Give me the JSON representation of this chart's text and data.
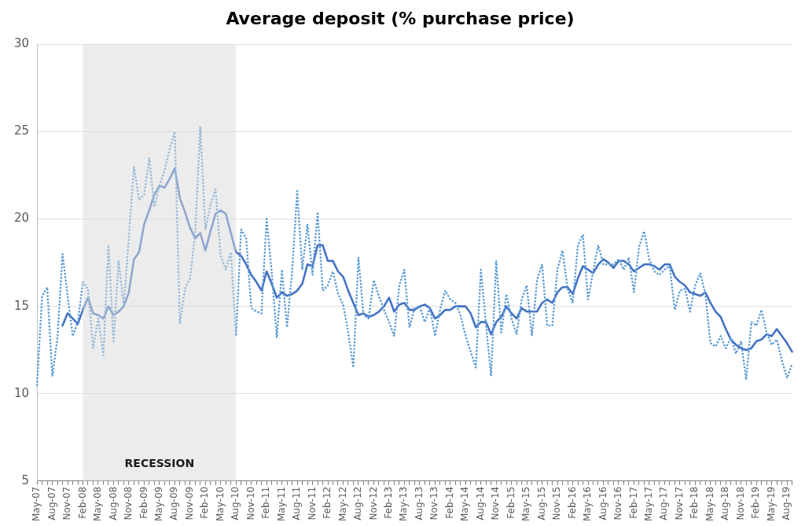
{
  "chart_data": {
    "type": "line",
    "title": "Average deposit (% purchase price)",
    "categories": [
      "May-07",
      null,
      null,
      "Aug-07",
      null,
      null,
      "Nov-07",
      null,
      null,
      "Feb-08",
      null,
      null,
      "May-08",
      null,
      null,
      "Aug-08",
      null,
      null,
      "Nov-08",
      null,
      null,
      "Feb-09",
      null,
      null,
      "May-09",
      null,
      null,
      "Aug-09",
      null,
      null,
      "Nov-09",
      null,
      null,
      "Feb-10",
      null,
      null,
      "May-10",
      null,
      null,
      "Aug-10",
      null,
      null,
      "Nov-10",
      null,
      null,
      "Feb-11",
      null,
      null,
      "May-11",
      null,
      null,
      "Aug-11",
      null,
      null,
      "Nov-11",
      null,
      null,
      "Feb-12",
      null,
      null,
      "May-12",
      null,
      null,
      "Aug-12",
      null,
      null,
      "Nov-12",
      null,
      null,
      "Feb-13",
      null,
      null,
      "May-13",
      null,
      null,
      "Aug-13",
      null,
      null,
      "Nov-13",
      null,
      null,
      "Feb-14",
      null,
      null,
      "May-14",
      null,
      null,
      "Aug-14",
      null,
      null,
      "Nov-14",
      null,
      null,
      "Feb-15",
      null,
      null,
      "May-15",
      null,
      null,
      "Aug-15",
      null,
      null,
      "Nov-15",
      null,
      null,
      "Feb-16",
      null,
      null,
      "May-16",
      null,
      null,
      "Aug-16",
      null,
      null,
      "Nov-16",
      null,
      null,
      "Feb-17",
      null,
      null,
      "May-17",
      null,
      null,
      "Aug-17",
      null,
      null,
      "Nov-17",
      null,
      null,
      "Feb-18",
      null,
      null,
      "May-18",
      null,
      null,
      "Aug-18",
      null,
      null,
      "Nov-18",
      null,
      null,
      "Feb-19",
      null,
      null,
      "May-19",
      null,
      null,
      "Aug-19",
      null
    ],
    "series": [
      {
        "color": "#5b9bd5",
        "line_style": "dotted",
        "values": [
          10.5,
          15.6,
          16.1,
          11.0,
          13.2,
          18.0,
          15.6,
          13.3,
          14.1,
          16.4,
          16.0,
          12.6,
          14.3,
          12.2,
          18.5,
          13.0,
          17.6,
          15.0,
          19.0,
          23.0,
          21.1,
          21.4,
          23.5,
          20.7,
          21.9,
          22.8,
          24.0,
          25.0,
          14.0,
          16.0,
          16.6,
          19.2,
          25.3,
          19.4,
          20.8,
          21.7,
          17.9,
          17.1,
          18.1,
          13.3,
          19.4,
          18.9,
          14.9,
          14.7,
          14.6,
          20.0,
          17.0,
          13.2,
          17.1,
          13.8,
          17.0,
          21.6,
          17.1,
          19.7,
          16.8,
          20.4,
          15.9,
          16.2,
          17.0,
          15.7,
          15.1,
          13.5,
          11.5,
          17.8,
          14.5,
          14.3,
          16.5,
          15.6,
          14.8,
          14.1,
          13.3,
          16.2,
          17.1,
          13.8,
          14.9,
          15.0,
          14.1,
          14.9,
          13.3,
          14.8,
          15.9,
          15.4,
          15.2,
          14.5,
          13.3,
          12.4,
          11.5,
          17.1,
          14.0,
          11.0,
          17.6,
          13.5,
          15.7,
          14.3,
          13.4,
          15.4,
          16.2,
          13.3,
          16.5,
          17.4,
          13.9,
          13.9,
          17.1,
          18.2,
          16.0,
          15.2,
          18.5,
          19.1,
          15.4,
          17.0,
          18.5,
          17.4,
          17.4,
          17.4,
          17.7,
          17.1,
          17.8,
          15.8,
          18.4,
          19.3,
          17.7,
          17.0,
          16.8,
          17.1,
          17.3,
          14.8,
          15.9,
          16.0,
          14.7,
          16.2,
          16.9,
          15.7,
          12.9,
          12.7,
          13.3,
          12.6,
          13.2,
          12.3,
          13.0,
          10.8,
          14.1,
          13.9,
          14.8,
          13.5,
          12.8,
          13.1,
          11.9,
          10.9,
          11.7
        ]
      },
      {
        "color": "#4472c4",
        "line_style": "solid",
        "values": [
          null,
          null,
          null,
          null,
          null,
          13.9,
          14.6,
          14.3,
          14.0,
          14.8,
          15.5,
          14.6,
          14.5,
          14.3,
          15.0,
          14.5,
          14.7,
          15.0,
          15.8,
          17.7,
          18.1,
          19.7,
          20.5,
          21.4,
          21.9,
          21.8,
          22.3,
          22.9,
          21.2,
          20.4,
          19.5,
          18.9,
          19.2,
          18.2,
          19.3,
          20.3,
          20.5,
          20.3,
          19.2,
          18.1,
          17.9,
          17.4,
          16.8,
          16.4,
          15.9,
          17.0,
          16.3,
          15.5,
          15.8,
          15.6,
          15.7,
          15.9,
          16.3,
          17.4,
          17.3,
          18.5,
          18.5,
          17.6,
          17.6,
          17.0,
          16.7,
          15.9,
          15.2,
          14.5,
          14.6,
          14.4,
          14.5,
          14.7,
          15.0,
          15.5,
          14.7,
          15.1,
          15.2,
          14.8,
          14.8,
          15.0,
          15.1,
          14.9,
          14.3,
          14.5,
          14.8,
          14.8,
          15.0,
          15.0,
          15.0,
          14.6,
          13.8,
          14.1,
          14.1,
          13.4,
          14.1,
          14.4,
          15.0,
          14.6,
          14.3,
          14.9,
          14.7,
          14.7,
          14.7,
          15.2,
          15.4,
          15.2,
          15.8,
          16.1,
          16.1,
          15.7,
          16.6,
          17.3,
          17.1,
          16.9,
          17.4,
          17.7,
          17.5,
          17.2,
          17.6,
          17.6,
          17.4,
          17.0,
          17.2,
          17.4,
          17.4,
          17.3,
          17.1,
          17.4,
          17.4,
          16.7,
          16.4,
          16.2,
          15.8,
          15.7,
          15.6,
          15.8,
          15.2,
          14.7,
          14.4,
          13.7,
          13.1,
          12.8,
          12.6,
          12.5,
          12.6,
          13.0,
          13.1,
          13.4,
          13.3,
          13.7,
          13.3,
          12.9,
          12.4
        ]
      }
    ],
    "ylim": [
      5,
      30
    ],
    "yticks": [
      5,
      10,
      15,
      20,
      25,
      30
    ],
    "grid": "y",
    "marker": "none",
    "bands": [
      {
        "axis": "x",
        "from": "Feb-08",
        "to": "Aug-10",
        "label": "RECESSION",
        "color": "#d9d9d9"
      }
    ]
  }
}
